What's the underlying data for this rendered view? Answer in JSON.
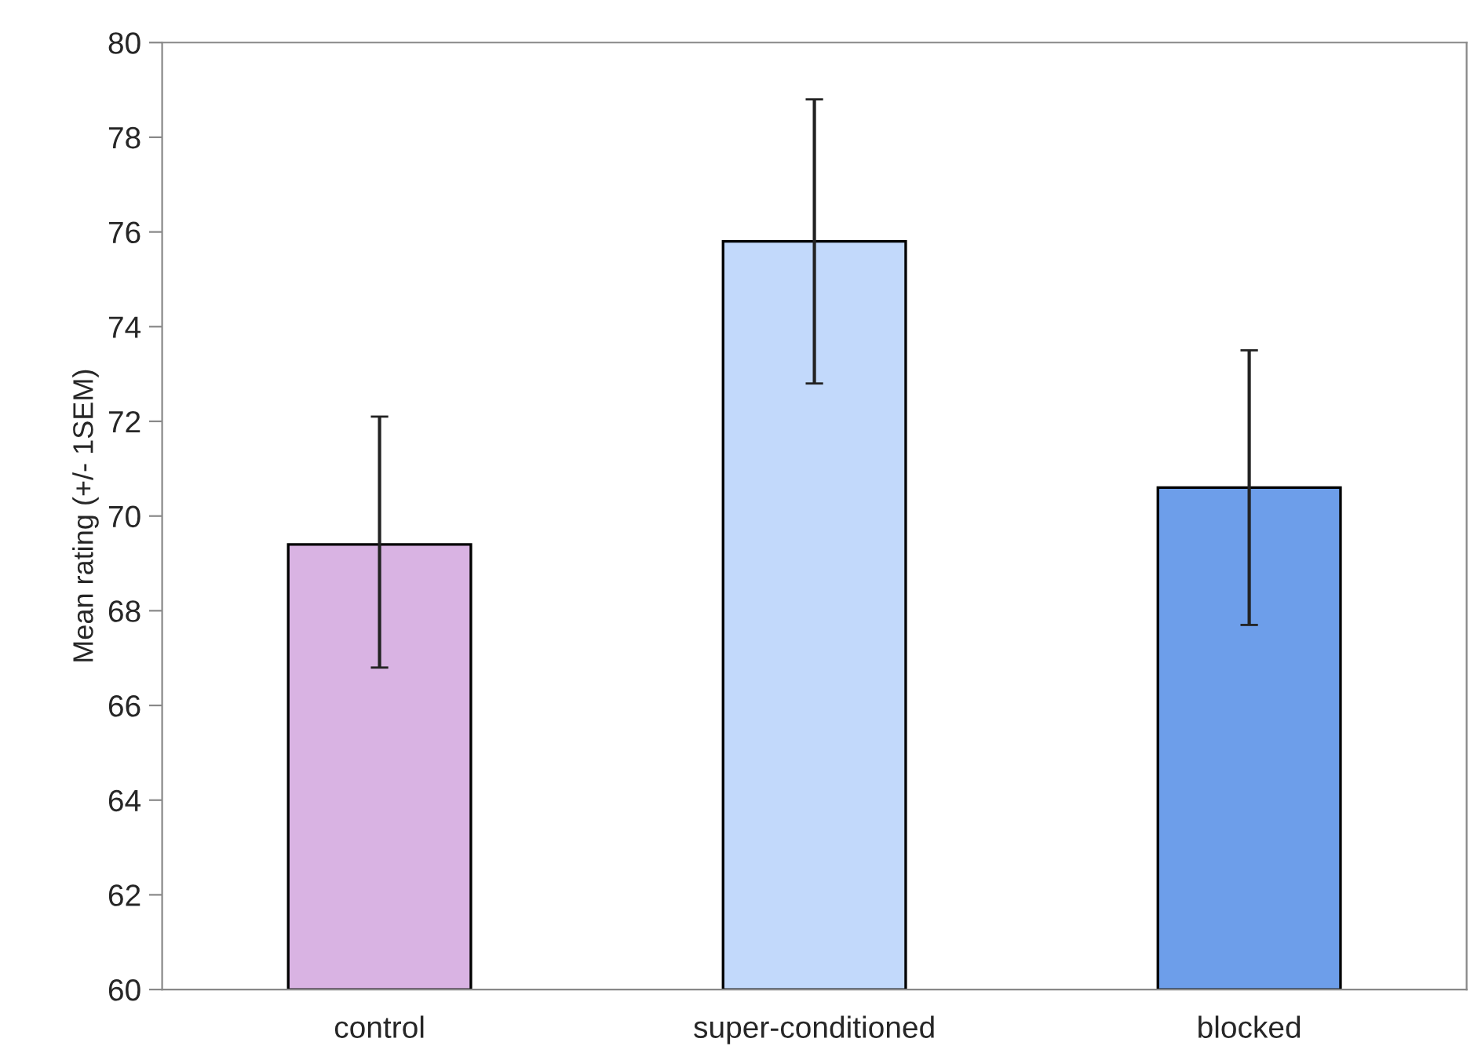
{
  "chart_data": {
    "type": "bar",
    "ylabel": "Mean rating (+/- 1SEM)",
    "categories": [
      "control",
      "super-conditioned",
      "blocked"
    ],
    "values": [
      69.4,
      75.8,
      70.6
    ],
    "colors": [
      "#d9b3e3",
      "#c2d9fb",
      "#6d9eea"
    ],
    "errors": [
      [
        66.8,
        72.1
      ],
      [
        72.8,
        78.8
      ],
      [
        67.7,
        73.5
      ]
    ],
    "ylim": [
      60,
      80
    ],
    "yticks": [
      60,
      62,
      64,
      66,
      68,
      70,
      72,
      74,
      76,
      78,
      80
    ],
    "grid": false
  }
}
